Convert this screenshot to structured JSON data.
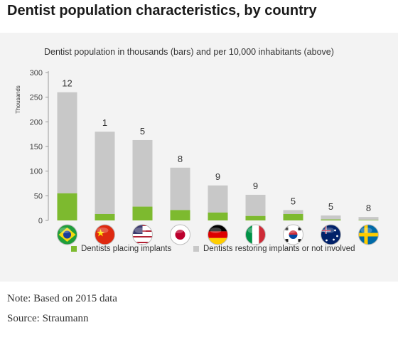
{
  "title": "Dentist population characteristics, by country",
  "note": "Note: Based on 2015 data",
  "source": "Source: Straumann",
  "chart_data": {
    "type": "bar",
    "stacked": true,
    "subtitle": "Dentist population in thousands (bars) and per 10,000 inhabitants (above)",
    "ylabel": "Thousands",
    "ylim": [
      0,
      300
    ],
    "yticks": [
      0,
      50,
      100,
      150,
      200,
      250,
      300
    ],
    "categories": [
      "Brazil",
      "China",
      "USA",
      "Japan",
      "Germany",
      "Italy",
      "South Korea",
      "Australia",
      "Sweden"
    ],
    "per_10000_labels": [
      "12",
      "1",
      "5",
      "8",
      "9",
      "9",
      "5",
      "5",
      "8"
    ],
    "series": [
      {
        "name": "Dentists placing implants",
        "color": "#7dba2f",
        "values": [
          55,
          13,
          28,
          21,
          16,
          9,
          13,
          2,
          1
        ]
      },
      {
        "name": "Dentists restoring implants or not involved",
        "color": "#c8c8c8",
        "values": [
          205,
          167,
          135,
          86,
          55,
          43,
          8,
          8,
          6
        ]
      }
    ],
    "legend_position": "bottom"
  }
}
